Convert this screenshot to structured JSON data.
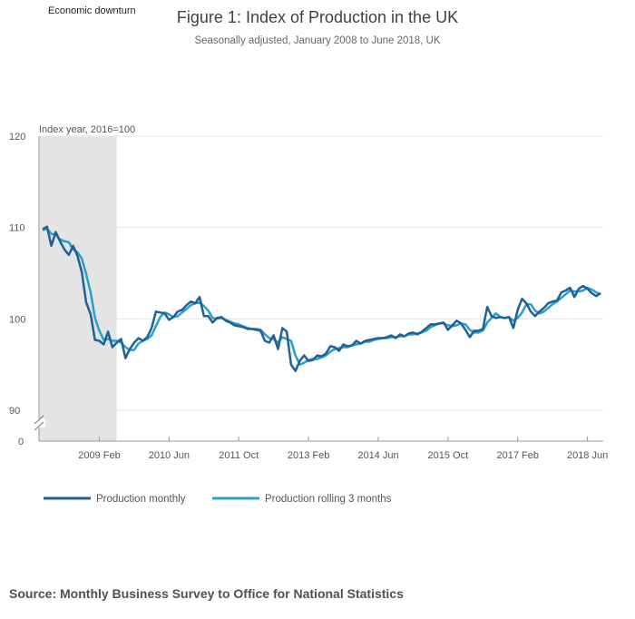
{
  "recession_label": "Economic downturn",
  "source": "Source: Monthly Business Survey to Office for National Statistics",
  "colors": {
    "monthly": "#206095",
    "rolling": "#27a0cc",
    "recession": "#e4e4e4",
    "grid": "#e6e6e6"
  },
  "chart_data": {
    "type": "line",
    "title": "Figure 1: Index of Production in the UK",
    "subtitle": "Seasonally adjusted, January 2008 to June 2018, UK",
    "ylabel": "Index year, 2016=100",
    "xlabel": "",
    "ylim": [
      90,
      120
    ],
    "y_ticks": [
      90,
      100,
      110,
      120
    ],
    "y_axis_break": true,
    "y_zero_label": "0",
    "x_start": "2008 Jan",
    "x_end": "2018 Jun",
    "x_ticks": [
      {
        "label": "2009 Feb",
        "index": 13
      },
      {
        "label": "2010 Jun",
        "index": 29
      },
      {
        "label": "2011 Oct",
        "index": 45
      },
      {
        "label": "2013 Feb",
        "index": 61
      },
      {
        "label": "2014 Jun",
        "index": 77
      },
      {
        "label": "2015 Oct",
        "index": 93
      },
      {
        "label": "2017 Feb",
        "index": 109
      },
      {
        "label": "2018 Jun",
        "index": 125
      }
    ],
    "shaded_region": {
      "label": "Economic downturn",
      "start_index": 0,
      "end_index": 17
    },
    "series": [
      {
        "name": "Production monthly",
        "values": [
          109.8,
          110.1,
          108.0,
          109.5,
          108.5,
          107.6,
          107.0,
          108.0,
          106.9,
          105.1,
          101.8,
          100.5,
          97.7,
          97.6,
          97.2,
          98.6,
          96.9,
          97.4,
          97.8,
          95.7,
          96.7,
          97.4,
          97.9,
          97.6,
          98.0,
          99.0,
          100.8,
          100.7,
          100.6,
          99.9,
          100.2,
          100.8,
          101.0,
          101.5,
          101.9,
          101.7,
          102.4,
          100.3,
          100.3,
          99.6,
          100.1,
          100.2,
          99.8,
          99.6,
          99.3,
          99.2,
          99.1,
          98.9,
          98.9,
          98.8,
          98.7,
          97.6,
          97.4,
          98.2,
          96.7,
          99.0,
          98.6,
          95.0,
          94.3,
          95.4,
          96.0,
          95.4,
          95.5,
          96.0,
          95.9,
          96.2,
          97.0,
          96.9,
          96.5,
          97.2,
          97.0,
          97.1,
          97.6,
          97.3,
          97.6,
          97.7,
          97.8,
          97.9,
          97.9,
          98.0,
          98.2,
          97.9,
          98.3,
          98.1,
          98.4,
          98.5,
          98.3,
          98.6,
          99.0,
          99.4,
          99.4,
          99.5,
          99.6,
          98.8,
          99.3,
          99.8,
          99.5,
          98.8,
          98.0,
          98.7,
          98.7,
          98.9,
          101.3,
          100.3,
          100.1,
          100.2,
          100.1,
          100.2,
          99.0,
          101.0,
          102.2,
          101.7,
          100.8,
          100.3,
          100.8,
          101.2,
          101.7,
          101.9,
          102.0,
          102.9,
          103.1,
          103.4,
          102.4,
          103.3,
          103.6,
          103.3,
          102.8,
          102.5,
          102.8
        ]
      },
      {
        "name": "Production rolling 3 months",
        "values": [
          109.7,
          109.9,
          109.3,
          109.2,
          108.7,
          108.5,
          108.4,
          107.6,
          107.3,
          106.6,
          104.9,
          102.9,
          100.1,
          98.7,
          97.7,
          97.8,
          97.6,
          97.6,
          97.4,
          96.9,
          96.6,
          96.6,
          97.3,
          97.6,
          97.8,
          98.2,
          99.2,
          100.2,
          100.7,
          100.5,
          100.2,
          100.3,
          100.7,
          101.1,
          101.5,
          101.7,
          101.8,
          101.4,
          100.9,
          100.1,
          100.0,
          100.1,
          99.9,
          99.7,
          99.5,
          99.4,
          99.2,
          99.0,
          98.9,
          98.9,
          98.8,
          98.3,
          97.9,
          97.8,
          97.4,
          98.0,
          97.8,
          97.6,
          96.0,
          95.0,
          95.2,
          95.5,
          95.6,
          95.6,
          95.8,
          96.0,
          96.4,
          96.7,
          96.8,
          96.9,
          96.9,
          97.1,
          97.2,
          97.3,
          97.5,
          97.5,
          97.7,
          97.8,
          97.9,
          97.9,
          98.0,
          98.0,
          98.1,
          98.1,
          98.3,
          98.3,
          98.4,
          98.5,
          98.7,
          99.1,
          99.3,
          99.5,
          99.5,
          99.3,
          99.2,
          99.3,
          99.5,
          99.4,
          98.8,
          98.5,
          98.5,
          98.7,
          99.6,
          100.1,
          100.6,
          100.2,
          100.1,
          100.2,
          99.8,
          100.1,
          100.7,
          101.6,
          101.6,
          100.9,
          100.6,
          100.8,
          101.2,
          101.6,
          101.9,
          102.3,
          102.7,
          103.1,
          103.0,
          103.0,
          103.1,
          103.4,
          103.2,
          102.9,
          102.7
        ]
      }
    ]
  }
}
